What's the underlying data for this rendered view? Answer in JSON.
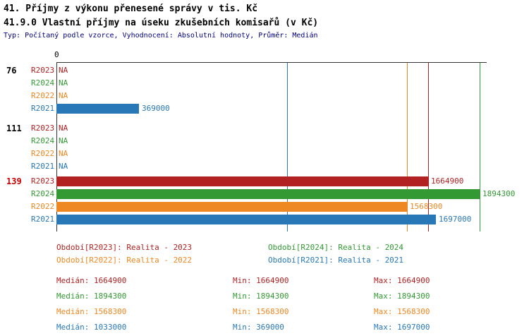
{
  "colors": {
    "R2023": "#b22222",
    "R2024": "#339933",
    "R2022": "#ee8822",
    "R2021": "#2878b8",
    "axis": "#333333",
    "meta_text": "#000080",
    "title_text": "#000000",
    "group_highlight": "#cc0000",
    "group_normal": "#000000"
  },
  "chart_data": {
    "type": "bar",
    "orientation": "horizontal",
    "title": "41. Příjmy z výkonu přenesené správy v tis. Kč",
    "subtitle": "41.9.0 Vlastní příjmy na úseku zkušebních komisařů (v Kč)",
    "meta": "Typ: Počítaný podle vzorce, Vyhodnocení: Absolutní hodnoty, Průměr: Medián",
    "x_axis": {
      "zero_label": "0",
      "max_value": 1894300
    },
    "xlim": [
      0,
      1894300
    ],
    "grid": "vertical-median-lines-per-series",
    "legend_position": "bottom",
    "series_order": [
      "R2023",
      "R2024",
      "R2022",
      "R2021"
    ],
    "groups": [
      {
        "id": "76",
        "highlight": false,
        "rows": [
          {
            "series": "R2023",
            "value": null,
            "display": "NA"
          },
          {
            "series": "R2024",
            "value": null,
            "display": "NA"
          },
          {
            "series": "R2022",
            "value": null,
            "display": "NA"
          },
          {
            "series": "R2021",
            "value": 369000,
            "display": "369000"
          }
        ]
      },
      {
        "id": "111",
        "highlight": false,
        "rows": [
          {
            "series": "R2023",
            "value": null,
            "display": "NA"
          },
          {
            "series": "R2024",
            "value": null,
            "display": "NA"
          },
          {
            "series": "R2022",
            "value": null,
            "display": "NA"
          },
          {
            "series": "R2021",
            "value": null,
            "display": "NA"
          }
        ]
      },
      {
        "id": "139",
        "highlight": true,
        "rows": [
          {
            "series": "R2023",
            "value": 1664900,
            "display": "1664900"
          },
          {
            "series": "R2024",
            "value": 1894300,
            "display": "1894300"
          },
          {
            "series": "R2022",
            "value": 1568300,
            "display": "1568300"
          },
          {
            "series": "R2021",
            "value": 1697000,
            "display": "1697000"
          }
        ]
      }
    ],
    "median_lines": [
      {
        "series": "R2021",
        "value": 1033000
      },
      {
        "series": "R2022",
        "value": 1568300
      },
      {
        "series": "R2023",
        "value": 1664900
      },
      {
        "series": "R2024",
        "value": 1894300
      }
    ],
    "legend": [
      {
        "series": "R2023",
        "text": "Období[R2023]: Realita - 2023",
        "column": 0,
        "row": 0
      },
      {
        "series": "R2024",
        "text": "Období[R2024]: Realita - 2024",
        "column": 1,
        "row": 0
      },
      {
        "series": "R2022",
        "text": "Období[R2022]: Realita - 2022",
        "column": 0,
        "row": 1
      },
      {
        "series": "R2021",
        "text": "Období[R2021]: Realita - 2021",
        "column": 1,
        "row": 1
      }
    ],
    "stats": [
      {
        "series": "R2023",
        "median": "Medián: 1664900",
        "min": "Min: 1664900",
        "max": "Max: 1664900"
      },
      {
        "series": "R2024",
        "median": "Medián: 1894300",
        "min": "Min: 1894300",
        "max": "Max: 1894300"
      },
      {
        "series": "R2022",
        "median": "Medián: 1568300",
        "min": "Min: 1568300",
        "max": "Max: 1568300"
      },
      {
        "series": "R2021",
        "median": "Medián: 1033000",
        "min": "Min: 369000",
        "max": "Max: 1697000"
      }
    ]
  }
}
